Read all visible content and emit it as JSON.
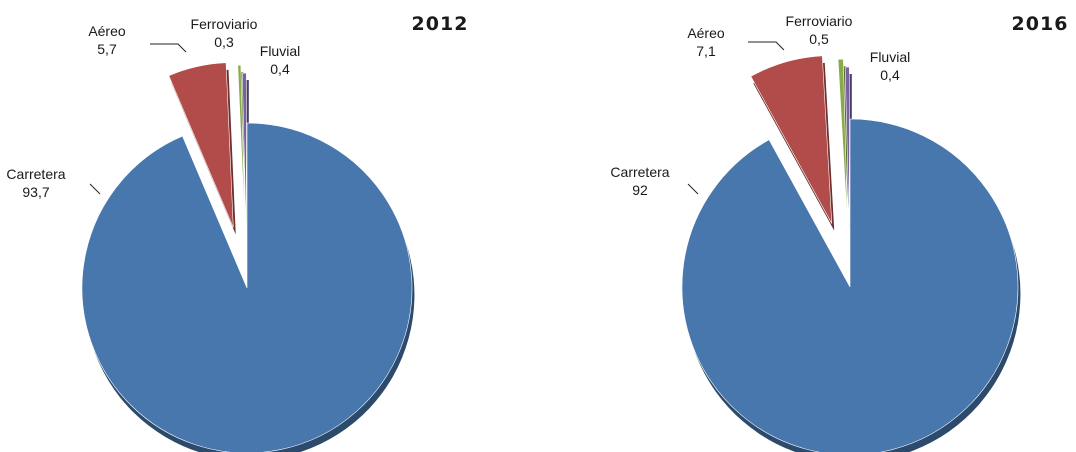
{
  "chart_data": [
    {
      "type": "pie",
      "title": "2012",
      "categories": [
        "Carretera",
        "Aéreo",
        "Ferroviario",
        "Fluvial"
      ],
      "values": [
        93.7,
        5.7,
        0.3,
        0.4
      ],
      "value_labels": [
        "93,7",
        "5,7",
        "0,3",
        "0,4"
      ],
      "colors": [
        "#4777ad",
        "#b14c4b",
        "#89a94a",
        "#7761a0"
      ],
      "exploded": true,
      "legend": "none"
    },
    {
      "type": "pie",
      "title": "2016",
      "categories": [
        "Carretera",
        "Aéreo",
        "Ferroviario",
        "Fluvial"
      ],
      "values": [
        92,
        7.1,
        0.5,
        0.4
      ],
      "value_labels": [
        "92",
        "7,1",
        "0,5",
        "0,4"
      ],
      "colors": [
        "#4777ad",
        "#b14c4b",
        "#89a94a",
        "#7761a0"
      ],
      "exploded": true,
      "legend": "none"
    }
  ]
}
